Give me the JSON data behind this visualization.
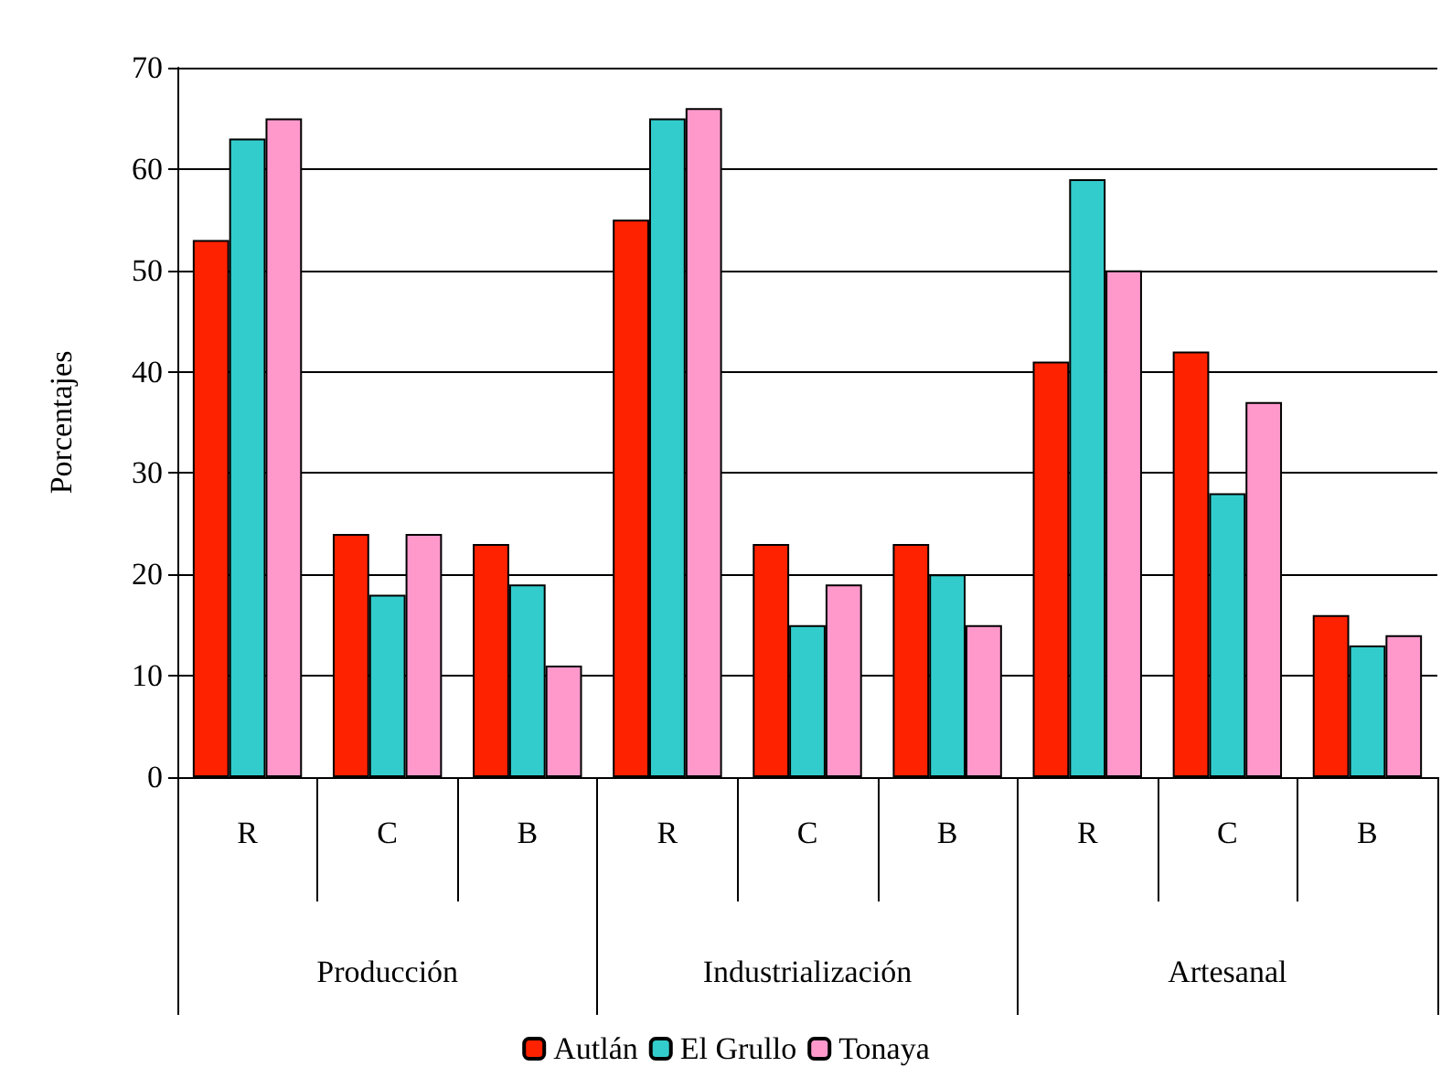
{
  "chart_data": {
    "type": "bar",
    "ylabel": "Porcentajes",
    "categories": [
      "R",
      "C",
      "B",
      "R",
      "C",
      "B",
      "R",
      "C",
      "B"
    ],
    "annotations": [
      "Producción",
      "Industrialización",
      "Artesanal"
    ],
    "series": [
      {
        "name": "Autlán",
        "color": "#ff2200",
        "values": [
          53,
          24,
          23,
          55,
          23,
          23,
          41,
          42,
          16
        ]
      },
      {
        "name": "El Grullo",
        "color": "#33cccc",
        "values": [
          63,
          18,
          19,
          65,
          15,
          20,
          59,
          28,
          13
        ]
      },
      {
        "name": "Tonaya",
        "color": "#ff99cc",
        "values": [
          65,
          24,
          11,
          66,
          19,
          15,
          50,
          37,
          14
        ]
      }
    ],
    "ylim": [
      0,
      70
    ],
    "yticks": [
      0,
      10,
      20,
      30,
      40,
      50,
      60,
      70
    ],
    "grid": "y",
    "legend": "bottom"
  }
}
